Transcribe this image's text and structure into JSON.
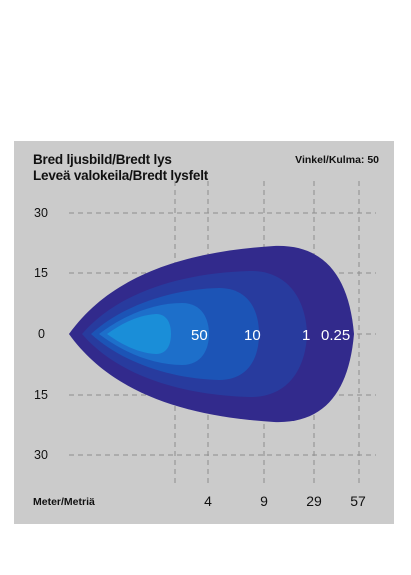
{
  "title_line1": "Bred ljusbild/Bredt lys",
  "title_line2": "Leveä valokeila/Bredt lysfelt",
  "angle_label": "Vinkel/Kulma: 50",
  "distance_unit_label": "Meter/Metriä",
  "width_ticks": [
    "30",
    "15",
    "0",
    "15",
    "30"
  ],
  "distance_ticks": [
    "4",
    "9",
    "29",
    "57"
  ],
  "lux_labels": [
    "50",
    "10",
    "1",
    "0.25"
  ],
  "colors": {
    "panel": "#cbcbcb",
    "zone_0_25": "#322a8c",
    "zone_1": "#283b9e",
    "zone_10": "#1c54b6",
    "zone_50": "#1d6fca",
    "core": "#1a8ed8"
  }
}
